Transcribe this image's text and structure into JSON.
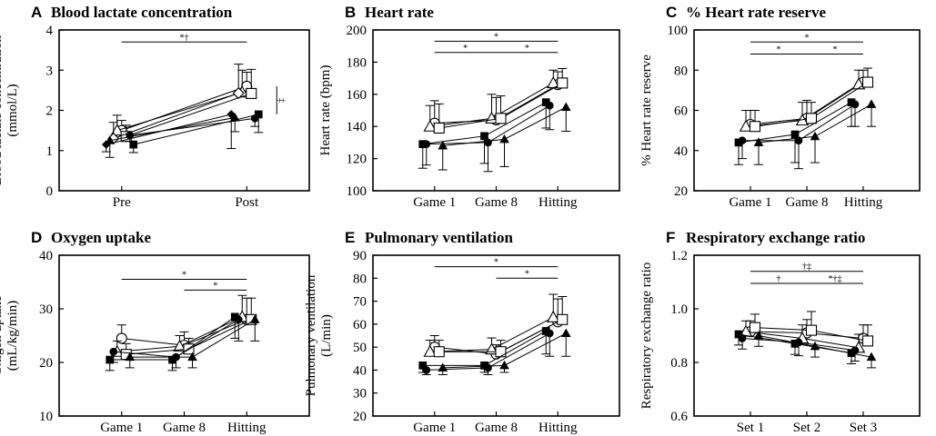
{
  "chart_data": [
    {
      "letter": "A",
      "type": "line",
      "title": "Blood lactate concentration",
      "xlabel": "",
      "ylabel": "Blood lactate concentration (mmol/L)",
      "ylabel_lines": [
        "Blood lactate concentration",
        "(mmol/L)"
      ],
      "ylim": [
        0,
        4
      ],
      "yticks": [
        0,
        1,
        2,
        3,
        4
      ],
      "categories": [
        "Pre",
        "Post"
      ],
      "series": [
        {
          "name": "open-circle",
          "marker": "circle",
          "filled": false,
          "values": [
            1.5,
            2.6
          ],
          "errors": [
            0.25,
            0.35
          ]
        },
        {
          "name": "open-triangle",
          "marker": "triangle",
          "filled": false,
          "values": [
            1.5,
            2.45
          ],
          "errors": [
            0.38,
            0.55
          ]
        },
        {
          "name": "open-square",
          "marker": "square",
          "filled": false,
          "values": [
            1.35,
            2.42
          ],
          "errors": [
            0.28,
            0.6
          ]
        },
        {
          "name": "open-diamond",
          "marker": "diamond",
          "filled": false,
          "values": [
            1.3,
            2.43
          ],
          "errors": [
            0.4,
            0.72
          ]
        },
        {
          "name": "filled-circle",
          "marker": "circle",
          "filled": true,
          "values": [
            1.38,
            1.8
          ],
          "errors": [
            0.15,
            0.2
          ]
        },
        {
          "name": "filled-triangle",
          "marker": "triangle",
          "filled": true,
          "values": [
            1.25,
            1.82
          ],
          "errors": [
            0.42,
            0.35
          ]
        },
        {
          "name": "filled-square",
          "marker": "square",
          "filled": true,
          "values": [
            1.15,
            1.9
          ],
          "errors": [
            0.2,
            0.45
          ]
        },
        {
          "name": "filled-diamond",
          "marker": "diamond",
          "filled": true,
          "values": [
            1.15,
            1.9
          ],
          "errors": [
            0.18,
            0.85
          ]
        }
      ],
      "significance": [
        {
          "from": 0,
          "to": 1,
          "level": 3.7,
          "label": "*†"
        }
      ],
      "bracket": {
        "at": 1,
        "from_value": 1.9,
        "to_value": 2.6,
        "label": "‡"
      }
    },
    {
      "letter": "B",
      "type": "line",
      "title": "Heart rate",
      "xlabel": "",
      "ylabel": "Heart rate (bpm)",
      "ylabel_lines": [
        "Heart rate (bpm)"
      ],
      "ylim": [
        100,
        200
      ],
      "yticks": [
        100,
        120,
        140,
        160,
        180,
        200
      ],
      "categories": [
        "Game 1",
        "Game 8",
        "Hitting"
      ],
      "series": [
        {
          "name": "open-circle",
          "marker": "circle",
          "filled": false,
          "values": [
            142,
            144,
            166
          ],
          "errors": [
            14,
            14,
            8
          ]
        },
        {
          "name": "open-triangle",
          "marker": "triangle",
          "filled": false,
          "values": [
            140,
            145,
            167
          ],
          "errors": [
            13,
            15,
            8
          ]
        },
        {
          "name": "open-square",
          "marker": "square",
          "filled": false,
          "values": [
            139,
            145,
            167
          ],
          "errors": [
            15,
            14,
            9
          ]
        },
        {
          "name": "filled-circle",
          "marker": "circle",
          "filled": true,
          "values": [
            129,
            130,
            153
          ],
          "errors": [
            13,
            18,
            15
          ]
        },
        {
          "name": "filled-triangle",
          "marker": "triangle",
          "filled": true,
          "values": [
            128,
            132,
            152
          ],
          "errors": [
            15,
            17,
            15
          ]
        },
        {
          "name": "filled-square",
          "marker": "square",
          "filled": true,
          "values": [
            129,
            134,
            155
          ],
          "errors": [
            15,
            17,
            16
          ]
        }
      ],
      "significance": [
        {
          "from": 0,
          "to": 2,
          "level": 193,
          "label": "*"
        },
        {
          "from": 0,
          "to": 1,
          "level": 186,
          "label": "*"
        },
        {
          "from": 1,
          "to": 2,
          "level": 186,
          "label": "*"
        }
      ]
    },
    {
      "letter": "C",
      "type": "line",
      "title": "% Heart rate reserve",
      "xlabel": "",
      "ylabel": "% Heart rate reserve",
      "ylabel_lines": [
        "% Heart rate reserve"
      ],
      "ylim": [
        20,
        100
      ],
      "yticks": [
        20,
        40,
        60,
        80,
        100
      ],
      "categories": [
        "Game 1",
        "Game 8",
        "Hitting"
      ],
      "series": [
        {
          "name": "open-circle",
          "marker": "circle",
          "filled": false,
          "values": [
            53,
            56,
            74
          ],
          "errors": [
            7,
            9,
            6
          ]
        },
        {
          "name": "open-triangle",
          "marker": "triangle",
          "filled": false,
          "values": [
            52,
            55,
            73
          ],
          "errors": [
            8,
            9,
            7
          ]
        },
        {
          "name": "open-square",
          "marker": "square",
          "filled": false,
          "values": [
            52,
            56,
            74
          ],
          "errors": [
            8,
            8,
            7
          ]
        },
        {
          "name": "filled-circle",
          "marker": "circle",
          "filled": true,
          "values": [
            45,
            45,
            63
          ],
          "errors": [
            9,
            14,
            11
          ]
        },
        {
          "name": "filled-triangle",
          "marker": "triangle",
          "filled": true,
          "values": [
            44,
            47,
            63
          ],
          "errors": [
            11,
            13,
            11
          ]
        },
        {
          "name": "filled-square",
          "marker": "square",
          "filled": true,
          "values": [
            44,
            48,
            64
          ],
          "errors": [
            11,
            14,
            12
          ]
        }
      ],
      "significance": [
        {
          "from": 0,
          "to": 2,
          "level": 94,
          "label": "*"
        },
        {
          "from": 0,
          "to": 1,
          "level": 88,
          "label": "*"
        },
        {
          "from": 1,
          "to": 2,
          "level": 88,
          "label": "*"
        }
      ]
    },
    {
      "letter": "D",
      "type": "line",
      "title": "Oxygen uptake",
      "xlabel": "",
      "ylabel": "Oxigen uptake (mL/kg/min)",
      "ylabel_lines": [
        "Oxigen uptake",
        "(mL/kg/min)"
      ],
      "ylim": [
        10,
        40
      ],
      "yticks": [
        10,
        20,
        30,
        40
      ],
      "categories": [
        "Game 1",
        "Game 8",
        "Hitting"
      ],
      "series": [
        {
          "name": "open-circle",
          "marker": "circle",
          "filled": false,
          "values": [
            24.5,
            23.2,
            28
          ],
          "errors": [
            2.5,
            2.5,
            4
          ]
        },
        {
          "name": "open-triangle",
          "marker": "triangle",
          "filled": false,
          "values": [
            22,
            23,
            28.5
          ],
          "errors": [
            2,
            2,
            4
          ]
        },
        {
          "name": "open-square",
          "marker": "square",
          "filled": false,
          "values": [
            21.5,
            22.5,
            28
          ],
          "errors": [
            2,
            2,
            4
          ]
        },
        {
          "name": "filled-circle",
          "marker": "circle",
          "filled": true,
          "values": [
            22,
            21,
            28
          ],
          "errors": [
            2,
            2,
            4
          ]
        },
        {
          "name": "filled-triangle",
          "marker": "triangle",
          "filled": true,
          "values": [
            21,
            21,
            28
          ],
          "errors": [
            2,
            2,
            4
          ]
        },
        {
          "name": "filled-square",
          "marker": "square",
          "filled": true,
          "values": [
            20.5,
            20.5,
            28.5
          ],
          "errors": [
            2,
            2,
            4
          ]
        }
      ],
      "significance": [
        {
          "from": 0,
          "to": 2,
          "level": 35.5,
          "label": "*"
        },
        {
          "from": 1,
          "to": 2,
          "level": 33.5,
          "label": "*"
        }
      ]
    },
    {
      "letter": "E",
      "type": "line",
      "title": "Pulmonary ventilation",
      "xlabel": "",
      "ylabel": "Pulmonary ventilation (L/min)",
      "ylabel_lines": [
        "Pulmonary ventilation",
        "(L/min)"
      ],
      "ylim": [
        20,
        90
      ],
      "yticks": [
        20,
        30,
        40,
        50,
        60,
        70,
        80,
        90
      ],
      "categories": [
        "Game 1",
        "Game 8",
        "Hitting"
      ],
      "series": [
        {
          "name": "open-circle",
          "marker": "circle",
          "filled": false,
          "values": [
            50,
            47,
            61
          ],
          "errors": [
            5,
            4,
            10
          ]
        },
        {
          "name": "open-triangle",
          "marker": "triangle",
          "filled": false,
          "values": [
            48,
            49,
            63
          ],
          "errors": [
            5,
            5,
            10
          ]
        },
        {
          "name": "open-square",
          "marker": "square",
          "filled": false,
          "values": [
            48,
            48,
            62
          ],
          "errors": [
            5,
            5,
            10
          ]
        },
        {
          "name": "filled-circle",
          "marker": "circle",
          "filled": true,
          "values": [
            40,
            41,
            56
          ],
          "errors": [
            2,
            3,
            10
          ]
        },
        {
          "name": "filled-triangle",
          "marker": "triangle",
          "filled": true,
          "values": [
            41,
            42,
            56
          ],
          "errors": [
            3,
            3,
            10
          ]
        },
        {
          "name": "filled-square",
          "marker": "square",
          "filled": true,
          "values": [
            42,
            42,
            57
          ],
          "errors": [
            3,
            3,
            10
          ]
        }
      ],
      "significance": [
        {
          "from": 0,
          "to": 2,
          "level": 85,
          "label": "*"
        },
        {
          "from": 1,
          "to": 2,
          "level": 80,
          "label": "*"
        }
      ]
    },
    {
      "letter": "F",
      "type": "line",
      "title": "Respiratory exchange ratio",
      "xlabel": "",
      "ylabel": "Respiratory exchange ratio",
      "ylabel_lines": [
        "Respiratory exchange ratio"
      ],
      "ylim": [
        0.6,
        1.2
      ],
      "yticks": [
        0.6,
        0.8,
        1.0,
        1.2
      ],
      "categories": [
        "Set 1",
        "Set 2",
        "Set 3"
      ],
      "series": [
        {
          "name": "open-circle",
          "marker": "circle",
          "filled": false,
          "values": [
            0.915,
            0.91,
            0.89
          ],
          "errors": [
            0.04,
            0.05,
            0.05
          ]
        },
        {
          "name": "open-triangle",
          "marker": "triangle",
          "filled": false,
          "values": [
            0.915,
            0.89,
            0.855
          ],
          "errors": [
            0.04,
            0.05,
            0.05
          ]
        },
        {
          "name": "open-square",
          "marker": "square",
          "filled": false,
          "values": [
            0.93,
            0.92,
            0.88
          ],
          "errors": [
            0.05,
            0.07,
            0.06
          ]
        },
        {
          "name": "filled-circle",
          "marker": "circle",
          "filled": true,
          "values": [
            0.89,
            0.875,
            0.845
          ],
          "errors": [
            0.04,
            0.05,
            0.04
          ]
        },
        {
          "name": "filled-triangle",
          "marker": "triangle",
          "filled": true,
          "values": [
            0.9,
            0.86,
            0.82
          ],
          "errors": [
            0.04,
            0.04,
            0.04
          ]
        },
        {
          "name": "filled-square",
          "marker": "square",
          "filled": true,
          "values": [
            0.905,
            0.87,
            0.835
          ],
          "errors": [
            0.04,
            0.04,
            0.04
          ]
        }
      ],
      "significance": [
        {
          "from": 0,
          "to": 2,
          "level": 1.14,
          "label": "†‡"
        },
        {
          "from": 0,
          "to": 1,
          "level": 1.095,
          "label": "†"
        },
        {
          "from": 1,
          "to": 2,
          "level": 1.095,
          "label": "*†‡"
        }
      ]
    }
  ]
}
